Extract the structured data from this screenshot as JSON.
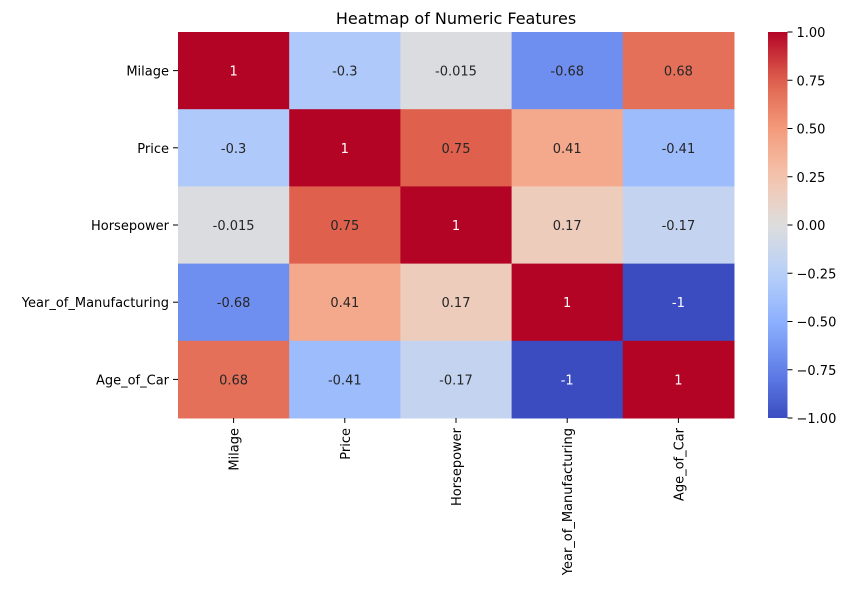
{
  "chart_data": {
    "type": "heatmap",
    "title": "Heatmap of Numeric Features",
    "rows": [
      "Milage",
      "Price",
      "Horsepower",
      "Year_of_Manufacturing",
      "Age_of_Car"
    ],
    "columns": [
      "Milage",
      "Price",
      "Horsepower",
      "Year_of_Manufacturing",
      "Age_of_Car"
    ],
    "values": [
      [
        1,
        -0.3,
        -0.015,
        -0.68,
        0.68
      ],
      [
        -0.3,
        1,
        0.75,
        0.41,
        -0.41
      ],
      [
        -0.015,
        0.75,
        1,
        0.17,
        -0.17
      ],
      [
        -0.68,
        0.41,
        0.17,
        1,
        -1
      ],
      [
        0.68,
        -0.41,
        -0.17,
        -1,
        1
      ]
    ],
    "cell_labels": [
      [
        "1",
        "-0.3",
        "-0.015",
        "-0.68",
        "0.68"
      ],
      [
        "-0.3",
        "1",
        "0.75",
        "0.41",
        "-0.41"
      ],
      [
        "-0.015",
        "0.75",
        "1",
        "0.17",
        "-0.17"
      ],
      [
        "-0.68",
        "0.41",
        "0.17",
        "1",
        "-1"
      ],
      [
        "0.68",
        "-0.41",
        "-0.17",
        "-1",
        "1"
      ]
    ],
    "colormap": "coolwarm",
    "vmin": -1,
    "vmax": 1,
    "colorbar_ticks": [
      1.0,
      0.75,
      0.5,
      0.25,
      0.0,
      -0.25,
      -0.5,
      -0.75,
      -1.0
    ],
    "colorbar_tick_labels": [
      "1.00",
      "0.75",
      "0.50",
      "0.25",
      "0.00",
      "−0.25",
      "−0.50",
      "−0.75",
      "−1.00"
    ],
    "colorbar_position": "right",
    "x_tick_rotation": "vertical",
    "grid": false
  }
}
